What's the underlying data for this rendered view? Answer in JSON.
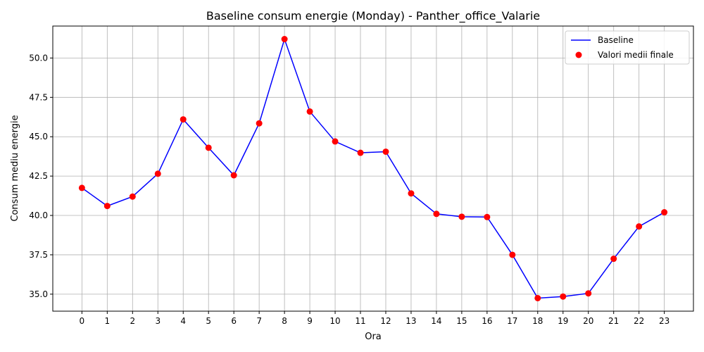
{
  "chart_data": {
    "type": "line",
    "title": "Baseline consum energie (Monday) - Panther_office_Valarie",
    "xlabel": "Ora",
    "ylabel": "Consum mediu energie",
    "x": [
      0,
      1,
      2,
      3,
      4,
      5,
      6,
      7,
      8,
      9,
      10,
      11,
      12,
      13,
      14,
      15,
      16,
      17,
      18,
      19,
      20,
      21,
      22,
      23
    ],
    "xticks": [
      "0",
      "1",
      "2",
      "3",
      "4",
      "5",
      "6",
      "7",
      "8",
      "9",
      "10",
      "11",
      "12",
      "13",
      "14",
      "15",
      "16",
      "17",
      "18",
      "19",
      "20",
      "21",
      "22",
      "23"
    ],
    "yticks": [
      "35.0",
      "37.5",
      "40.0",
      "42.5",
      "45.0",
      "47.5",
      "50.0"
    ],
    "ytick_values": [
      35.0,
      37.5,
      40.0,
      42.5,
      45.0,
      47.5,
      50.0
    ],
    "xlim": [
      -1.15,
      24.15
    ],
    "ylim": [
      33.92,
      52.03
    ],
    "grid": true,
    "legend_position": "top-right",
    "series": [
      {
        "name": "Baseline",
        "kind": "line",
        "color": "#0000ff",
        "values": [
          41.75,
          40.6,
          41.2,
          42.65,
          46.1,
          44.3,
          42.55,
          45.85,
          51.2,
          46.6,
          44.7,
          43.98,
          44.05,
          41.4,
          40.1,
          39.92,
          39.9,
          37.5,
          34.75,
          34.85,
          35.05,
          37.25,
          39.3,
          40.2
        ]
      },
      {
        "name": "Valori medii finale",
        "kind": "scatter",
        "color": "#ff0000",
        "values": [
          41.75,
          40.6,
          41.2,
          42.65,
          46.1,
          44.3,
          42.55,
          45.85,
          51.2,
          46.6,
          44.7,
          43.98,
          44.05,
          41.4,
          40.1,
          39.92,
          39.9,
          37.5,
          34.75,
          34.85,
          35.05,
          37.25,
          39.3,
          40.2
        ]
      }
    ]
  }
}
